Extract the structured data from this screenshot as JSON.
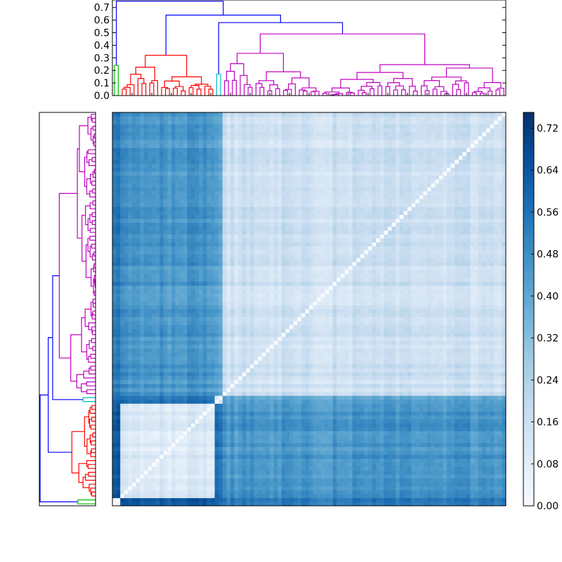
{
  "chart_data": [
    {
      "type": "dendrogram",
      "orientation": "top",
      "yticks": [
        "0.0",
        "0.1",
        "0.2",
        "0.3",
        "0.4",
        "0.5",
        "0.6",
        "0.7"
      ],
      "ylim": [
        0,
        0.76
      ],
      "leaf_count": 100,
      "cluster_colors": {
        "green": "#00bf00",
        "red": "#ff0000",
        "cyan": "#00bfbf",
        "magenta": "#bf00bf",
        "root": "#0000ff"
      },
      "clusters": [
        {
          "color": "green",
          "leaves": 2,
          "height": 0.24
        },
        {
          "color": "red",
          "leaves": 24,
          "height": 0.32
        },
        {
          "color": "cyan",
          "leaves": 2,
          "height": 0.17
        },
        {
          "color": "magenta",
          "leaves": 72,
          "height": 0.49
        }
      ],
      "root_merges": [
        {
          "joins": "magenta+cyan",
          "height": 0.58
        },
        {
          "joins": "(magenta+cyan)+red",
          "height": 0.64
        },
        {
          "joins": "all+green",
          "height": 0.75
        }
      ]
    },
    {
      "type": "dendrogram",
      "orientation": "left",
      "leaf_count": 100,
      "note_mirror": "same clustering as top dendrogram, leaves ordered bottom-to-top"
    },
    {
      "type": "heatmap",
      "colormap": "Blues",
      "size": [
        100,
        100
      ],
      "diagonal_value": 0.0,
      "colorbar": {
        "ticks": [
          "0.00",
          "0.08",
          "0.16",
          "0.24",
          "0.32",
          "0.40",
          "0.48",
          "0.56",
          "0.64",
          "0.72"
        ],
        "range": [
          0,
          0.75
        ]
      },
      "block_levels": {
        "within_green": 0.05,
        "within_red": 0.1,
        "within_cyan": 0.1,
        "within_magenta": 0.15,
        "red_cyan": 0.55,
        "red_magenta": 0.45,
        "cyan_magenta": 0.4,
        "green_red": 0.65,
        "green_cyan": 0.6,
        "green_magenta": 0.55
      }
    }
  ]
}
